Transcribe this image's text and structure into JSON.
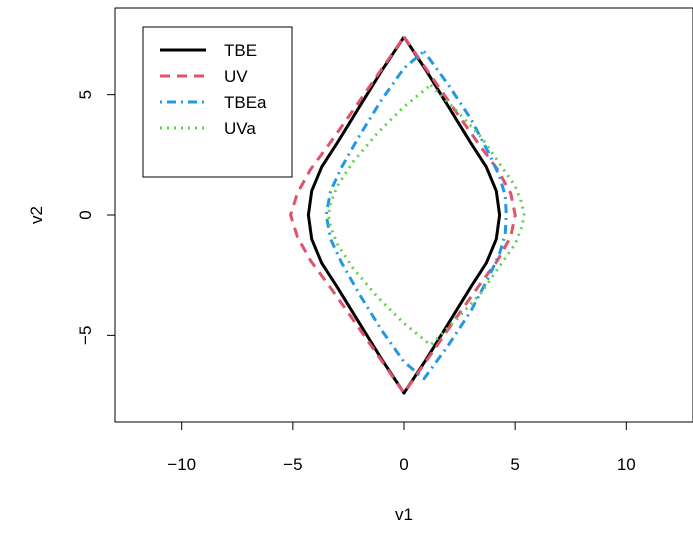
{
  "chart_data": {
    "type": "line",
    "title": "",
    "xlabel": "v1",
    "ylabel": "v2",
    "xlim": [
      -13,
      13
    ],
    "ylim": [
      -8.6,
      8.6
    ],
    "xticks": [
      -10,
      -5,
      0,
      5,
      10
    ],
    "xtick_labels": [
      "−10",
      "−5",
      "0",
      "5",
      "10"
    ],
    "yticks": [
      -5,
      0,
      5
    ],
    "ytick_labels": [
      "−5",
      "0",
      "5"
    ],
    "grid": false,
    "legend_position": "top-left",
    "series": [
      {
        "name": "TBE",
        "color": "#000000",
        "dash": "solid",
        "x": [
          0,
          1.0,
          2.0,
          3.0,
          3.7,
          4.15,
          4.3,
          4.15,
          3.7,
          3.0,
          2.0,
          1.0,
          0,
          -1.0,
          -2.0,
          -3.0,
          -3.7,
          -4.15,
          -4.3,
          -4.15,
          -3.7,
          -3.0,
          -2.0,
          -1.0,
          0
        ],
        "y": [
          7.4,
          6.0,
          4.5,
          3.0,
          2.0,
          1.0,
          0,
          -1.0,
          -2.0,
          -3.0,
          -4.5,
          -6.0,
          -7.4,
          -6.0,
          -4.5,
          -3.0,
          -2.0,
          -1.0,
          0,
          1.0,
          2.0,
          3.0,
          4.5,
          6.0,
          7.4
        ]
      },
      {
        "name": "UV",
        "color": "#DF536B",
        "dash": "dashed",
        "x": [
          0,
          1.2,
          2.4,
          3.4,
          4.2,
          4.8,
          5.0,
          4.8,
          4.2,
          3.4,
          2.4,
          1.2,
          0,
          -1.2,
          -2.4,
          -3.4,
          -4.2,
          -4.8,
          -5.1,
          -4.8,
          -4.2,
          -3.4,
          -2.4,
          -1.2,
          0
        ],
        "y": [
          7.4,
          5.8,
          4.2,
          2.9,
          1.9,
          0.9,
          0,
          -0.9,
          -1.9,
          -2.9,
          -4.2,
          -5.8,
          -7.4,
          -5.8,
          -4.2,
          -2.9,
          -1.9,
          -0.9,
          0,
          0.9,
          1.9,
          2.9,
          4.2,
          5.8,
          7.4
        ]
      },
      {
        "name": "TBEa",
        "color": "#2297E6",
        "dash": "dotdash",
        "x": [
          0.9,
          2.0,
          3.0,
          3.8,
          4.3,
          4.55,
          4.6,
          4.55,
          4.3,
          3.8,
          3.0,
          2.0,
          0.9,
          0,
          -1.0,
          -2.0,
          -2.8,
          -3.3,
          -3.5,
          -3.3,
          -2.8,
          -2.0,
          -1.0,
          0,
          0.9
        ],
        "y": [
          6.8,
          5.4,
          4.0,
          2.6,
          1.6,
          0.8,
          0,
          -0.8,
          -1.6,
          -2.6,
          -4.0,
          -5.4,
          -6.8,
          -6.1,
          -4.8,
          -3.3,
          -2.0,
          -1.0,
          0,
          1.0,
          2.0,
          3.3,
          4.8,
          6.1,
          6.8
        ]
      },
      {
        "name": "UVa",
        "color": "#61D04F",
        "dash": "dotted",
        "x": [
          1.2,
          2.4,
          3.5,
          4.4,
          5.0,
          5.3,
          5.4,
          5.3,
          5.0,
          4.4,
          3.5,
          2.4,
          1.2,
          0,
          -1.2,
          -2.3,
          -3.0,
          -3.3,
          -3.4,
          -3.3,
          -3.0,
          -2.3,
          -1.2,
          0,
          1.2
        ],
        "y": [
          5.4,
          4.3,
          3.2,
          2.0,
          1.2,
          0.5,
          0,
          -0.5,
          -1.2,
          -2.0,
          -3.2,
          -4.3,
          -5.4,
          -4.5,
          -3.4,
          -2.2,
          -1.2,
          -0.5,
          0,
          0.5,
          1.2,
          2.2,
          3.4,
          4.5,
          5.4
        ]
      }
    ]
  }
}
